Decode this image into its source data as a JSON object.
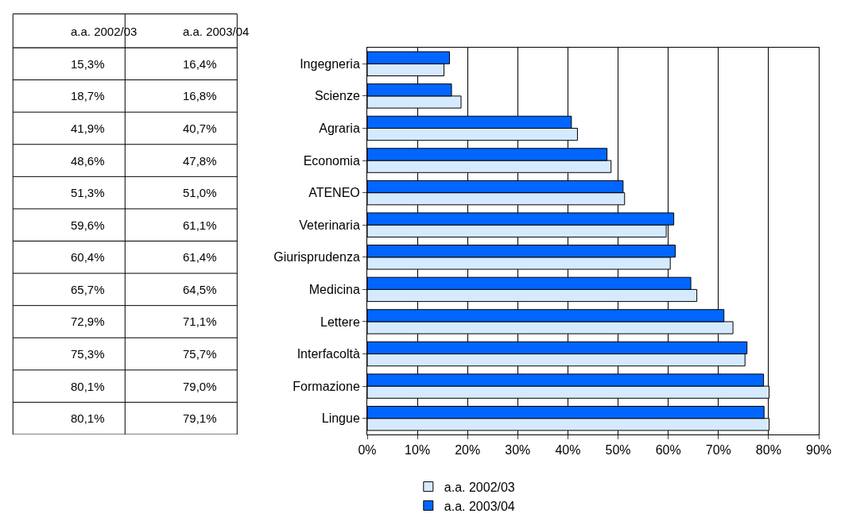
{
  "chart_data": {
    "type": "bar",
    "orientation": "horizontal",
    "categories": [
      "Ingegneria",
      "Scienze",
      "Agraria",
      "Economia",
      "ATENEO",
      "Veterinaria",
      "Giurisprudenza",
      "Medicina",
      "Lettere",
      "Interfacoltà",
      "Formazione",
      "Lingue"
    ],
    "series": [
      {
        "name": "a.a. 2002/03",
        "color": "#d6eaff",
        "values": [
          15.3,
          18.7,
          41.9,
          48.6,
          51.3,
          59.6,
          60.4,
          65.7,
          72.9,
          75.3,
          80.1,
          80.1
        ],
        "value_labels": [
          "15,3%",
          "18,7%",
          "41,9%",
          "48,6%",
          "51,3%",
          "59,6%",
          "60,4%",
          "65,7%",
          "72,9%",
          "75,3%",
          "80,1%",
          "80,1%"
        ]
      },
      {
        "name": "a.a. 2003/04",
        "color": "#0066ff",
        "values": [
          16.4,
          16.8,
          40.7,
          47.8,
          51.0,
          61.1,
          61.4,
          64.5,
          71.1,
          75.7,
          79.0,
          79.1
        ],
        "value_labels": [
          "16,4%",
          "16,8%",
          "40,7%",
          "47,8%",
          "51,0%",
          "61,1%",
          "61,4%",
          "64,5%",
          "71,1%",
          "75,7%",
          "79,0%",
          "79,1%"
        ]
      }
    ],
    "xlim": [
      0,
      90
    ],
    "xticks": [
      {
        "value": 0,
        "label": "0%"
      },
      {
        "value": 10,
        "label": "10%"
      },
      {
        "value": 20,
        "label": "20%"
      },
      {
        "value": 30,
        "label": "30%"
      },
      {
        "value": 40,
        "label": "40%"
      },
      {
        "value": 50,
        "label": "50%"
      },
      {
        "value": 60,
        "label": "60%"
      },
      {
        "value": 70,
        "label": "70%"
      },
      {
        "value": 80,
        "label": "80%"
      },
      {
        "value": 90,
        "label": "90%"
      }
    ],
    "grid": "x",
    "legend": "bottom"
  }
}
